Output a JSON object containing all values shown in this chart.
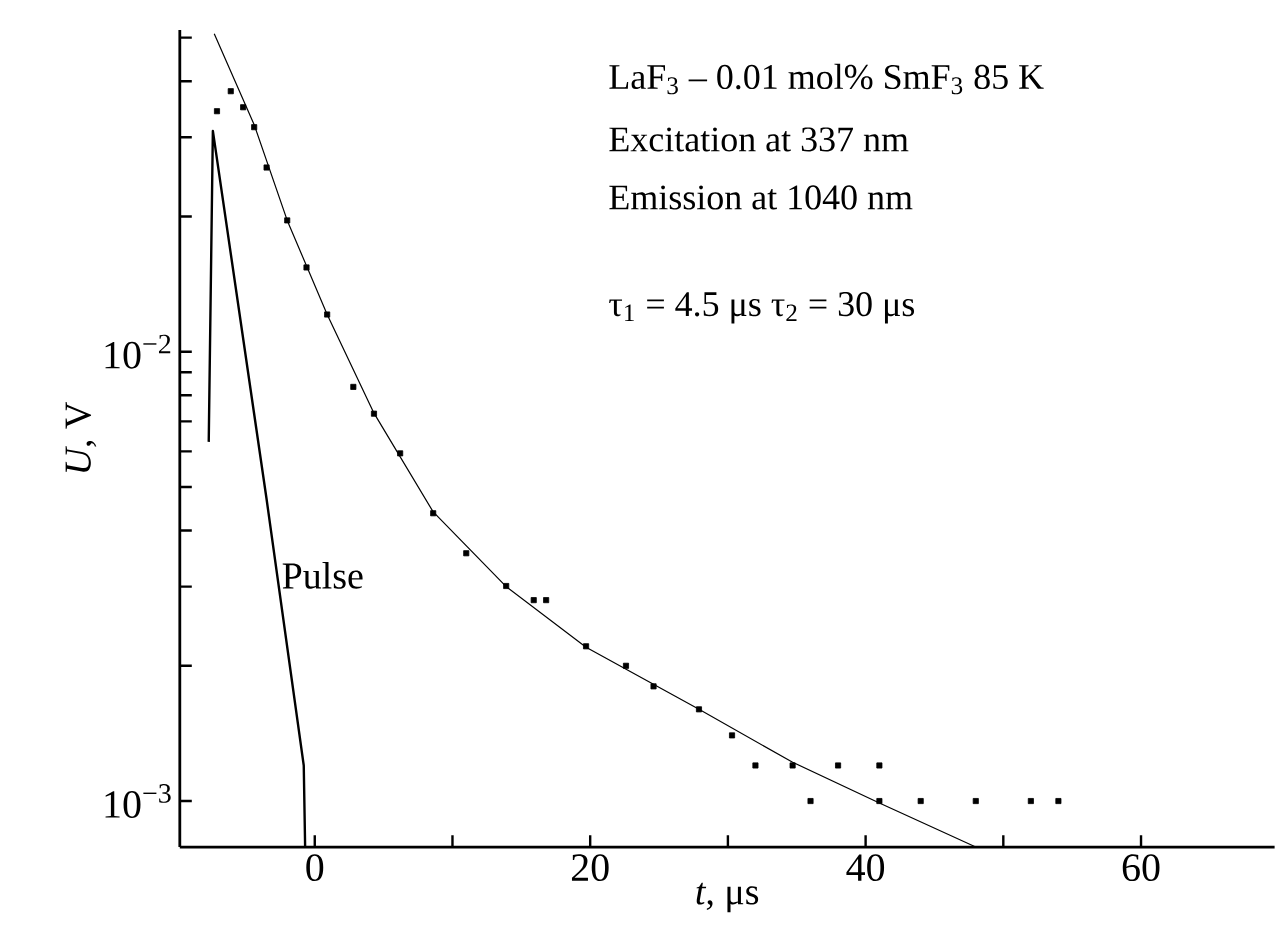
{
  "chart_data": {
    "type": "line",
    "xlabel": "*t*, μs",
    "ylabel": "*U*, V",
    "log": "y",
    "xlim": [
      -9.8,
      69.7
    ],
    "ylim": [
      0.00079,
      0.052
    ],
    "xticks": [
      0,
      20,
      40,
      60,
      {
        "value": 10,
        "label": null
      },
      {
        "value": 30,
        "label": null
      },
      {
        "value": 50,
        "label": null
      }
    ],
    "yticks": [
      {
        "value": 0.001,
        "label": "10$^{−3}$"
      },
      {
        "value": 0.01,
        "label": "10$^{−2}$"
      },
      {
        "value": 0.002,
        "label": null
      },
      {
        "value": 0.003,
        "label": null
      },
      {
        "value": 0.004,
        "label": null
      },
      {
        "value": 0.005,
        "label": null
      },
      {
        "value": 0.006,
        "label": null
      },
      {
        "value": 0.007,
        "label": null
      },
      {
        "value": 0.008,
        "label": null
      },
      {
        "value": 0.009,
        "label": null
      },
      {
        "value": 0.02,
        "label": null
      },
      {
        "value": 0.03,
        "label": null
      },
      {
        "value": 0.04,
        "label": null
      },
      {
        "value": 0.05,
        "label": null
      }
    ],
    "annotations": [
      "LaF$_{3}$ – 0.01 mol% SmF$_{3}$ 85 K",
      "Excitation at 337 nm",
      "Emission at 1040 nm",
      "τ$_{1}$ = 4.5 μs   τ$_{2}$ = 30 μs"
    ],
    "series": [
      {
        "type": "scatter",
        "marker": "square",
        "color": "#000000",
        "x": [
          -7.1,
          -6.1,
          -5.2,
          -4.4,
          -3.5,
          -2.0,
          -0.6,
          0.9,
          2.8,
          4.3,
          6.2,
          8.6,
          11.0,
          13.9,
          15.9,
          16.8,
          19.7,
          22.6,
          24.6,
          27.9,
          30.3,
          32,
          34.7,
          38,
          41,
          36,
          41,
          44,
          48,
          52,
          54
        ],
        "values": [
          0.0343,
          0.038,
          0.035,
          0.0316,
          0.0257,
          0.0196,
          0.0154,
          0.0121,
          0.00835,
          0.00728,
          0.00594,
          0.00437,
          0.00356,
          0.00301,
          0.0028,
          0.0028,
          0.00221,
          0.002,
          0.0018,
          0.0016,
          0.0014,
          0.0012,
          0.0012,
          0.0012,
          0.0012,
          0.001,
          0.001,
          0.001,
          0.001,
          0.001,
          0.001
        ]
      },
      {
        "color": "#000000",
        "x": [
          -7.3,
          -4.4,
          -2,
          0.9,
          4.3,
          8.6,
          13.9,
          19.7,
          27.9,
          34.7,
          41,
          48
        ],
        "values": [
          0.051,
          0.032,
          0.0196,
          0.0121,
          0.0073,
          0.0044,
          0.003,
          0.0022,
          0.0016,
          0.00122,
          0.00099,
          0.00079
        ]
      },
      {
        "name": "Pulse",
        "color": "#000000",
        "x": [
          -7.7,
          -7.4,
          -3.5,
          -0.8,
          -0.7
        ],
        "values": [
          0.0063,
          0.031,
          0.0047,
          0.0012,
          0.00079
        ]
      }
    ]
  }
}
